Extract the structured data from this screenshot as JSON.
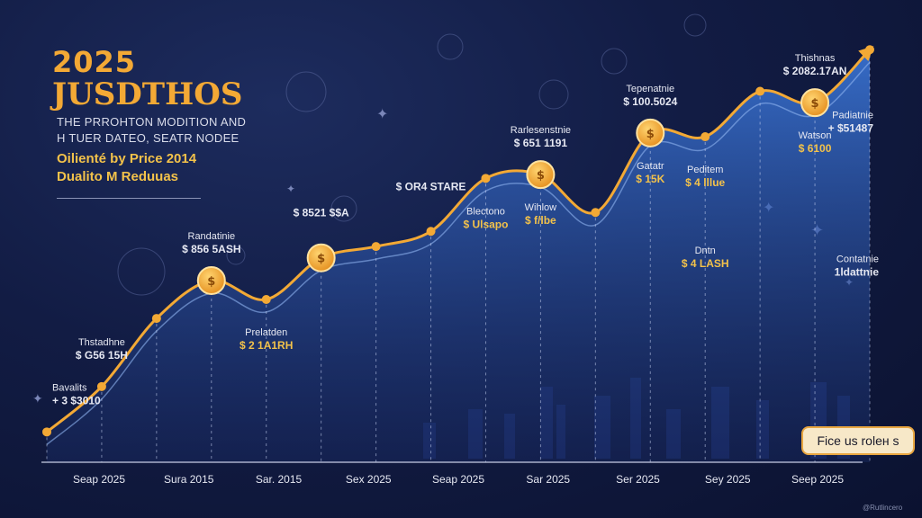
{
  "header": {
    "year": "2025",
    "title": "JUSDTHOS",
    "subtitle_line1": "THE PRROHTON MODITION AND",
    "subtitle_line2": "H TUER DATEO, SEATR NODEE",
    "highlight_line1": "Oilienté by Price 2014",
    "highlight_line2": "Dualito M Reduuas"
  },
  "button": {
    "label": "Fice us roleн s"
  },
  "credit": "@Rutlincero",
  "colors": {
    "background": "#121c44",
    "line": "#f3a935",
    "marker": "#f3a935",
    "area": "#2f6bd0",
    "label_gold": "#f3c24a",
    "label_white": "#e6e8f2"
  },
  "chart_data": {
    "type": "area",
    "x_tick_labels": [
      "Seap 2025",
      "Sura 2015",
      "Sar. 2015",
      "Sex 2025",
      "Seap 2025",
      "Sar 2025",
      "Ser 2025",
      "Sey 2025",
      "Seep 2025"
    ],
    "series": [
      {
        "values": [
          8,
          20,
          38,
          48,
          43,
          54,
          57,
          61,
          75,
          76,
          66,
          87,
          86,
          98,
          95,
          109
        ]
      }
    ],
    "markers_at_index": [
      3,
      5,
      9,
      11,
      14
    ],
    "annotations": [
      {
        "at_index": 0,
        "label": "Bavalits",
        "value": "+ 3 $3010",
        "position": "above"
      },
      {
        "at_index": 1,
        "label": "Thstadhne",
        "value": "$ G56 15H",
        "position": "above"
      },
      {
        "at_index": 3,
        "label": "Randatinie",
        "value": "$ 856 5ASH",
        "position": "above"
      },
      {
        "at_index": 5,
        "label": "",
        "value": "$ 8521 $$A",
        "position": "above"
      },
      {
        "at_index": 7,
        "label": "",
        "value": "$ OR4 STARE",
        "position": "above"
      },
      {
        "at_index": 9,
        "label": "Rarlesenstnie",
        "value": "$ 651 1191",
        "position": "above"
      },
      {
        "at_index": 11,
        "label": "Tepenatnie",
        "value": "$ 100.5024",
        "position": "above"
      },
      {
        "at_index": 14,
        "label": "Thishnas",
        "value": "$ 2082.17AN",
        "position": "above"
      },
      {
        "at_index": 15,
        "label": "Padiatnie",
        "value": "+ $51487",
        "position": "right"
      },
      {
        "at_index": 15,
        "label": "Contatnie",
        "value": "1ldattnie",
        "position": "right-low"
      },
      {
        "at_index": 4,
        "label": "Prelatden",
        "value": "$ 2 1A1RH",
        "position": "below"
      },
      {
        "at_index": 8,
        "label": "Blectono",
        "value": "$ Ulsapo",
        "position": "below"
      },
      {
        "at_index": 9,
        "label": "Wihlow",
        "value": "$ f/lbe",
        "position": "below"
      },
      {
        "at_index": 11,
        "label": "Gatatr",
        "value": "$ 15K",
        "position": "below"
      },
      {
        "at_index": 12,
        "label": "Peditem",
        "value": "$ 4 lllue",
        "position": "below"
      },
      {
        "at_index": 12,
        "label": "Dntn",
        "value": "$ 4 LASH",
        "position": "below-low"
      },
      {
        "at_index": 14,
        "label": "Watson",
        "value": "$ 6100",
        "position": "below"
      }
    ],
    "grid": false,
    "legend": "none"
  }
}
